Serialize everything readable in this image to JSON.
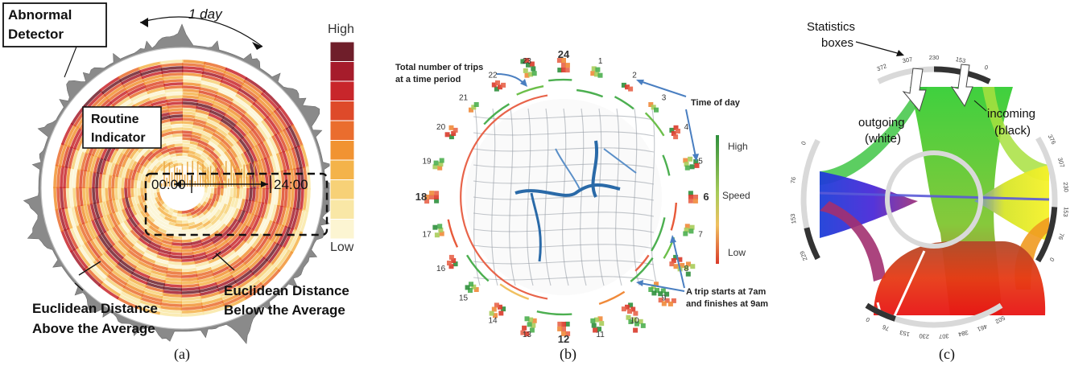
{
  "panel_a": {
    "caption": "(a)",
    "abnormal_detector": [
      "Abnormal",
      "Detector"
    ],
    "one_day": "1 day",
    "routine_indicator": [
      "Routine",
      "Indicator"
    ],
    "time_start": "00:00",
    "time_end": "24:00",
    "legend_high": "High",
    "legend_low": "Low",
    "legend_colors": [
      "#6f1e2a",
      "#a61c2b",
      "#c8262b",
      "#de4a2a",
      "#ea6d2e",
      "#f19332",
      "#f4b34a",
      "#f7d177",
      "#f9e7a6",
      "#fcf5d2"
    ],
    "dist_above": [
      "Euclidean Distance",
      "Above the Average"
    ],
    "dist_below": [
      "Euclidean Distance",
      "Below the Average"
    ]
  },
  "panel_b": {
    "caption": "(b)",
    "total_trips": [
      "Total number of trips",
      "at a time period"
    ],
    "time_of_day": "Time of day",
    "trip_note": [
      "A trip starts at 7am",
      "and finishes at 9am"
    ],
    "speed_label": "Speed",
    "legend_high": "High",
    "legend_low": "Low",
    "hours": [
      "24",
      "1",
      "2",
      "3",
      "4",
      "5",
      "6",
      "7",
      "8",
      "9",
      "10",
      "11",
      "12",
      "13",
      "14",
      "15",
      "16",
      "17",
      "18",
      "19",
      "20",
      "21",
      "22",
      "23"
    ]
  },
  "panel_c": {
    "caption": "(c)",
    "statistics_boxes": [
      "Statistics",
      "boxes"
    ],
    "outgoing": [
      "outgoing",
      "(white)"
    ],
    "incoming": [
      "incoming",
      "(black)"
    ],
    "tick_labels_top": [
      "0",
      "153",
      "230",
      "307",
      "372"
    ],
    "tick_labels_right": [
      "376",
      "307",
      "230",
      "153",
      "76",
      "0"
    ],
    "tick_labels_left": [
      "0",
      "76",
      "153",
      "229"
    ],
    "tick_labels_bottom": [
      "0",
      "76",
      "153",
      "230",
      "307",
      "384",
      "461",
      "502"
    ]
  }
}
